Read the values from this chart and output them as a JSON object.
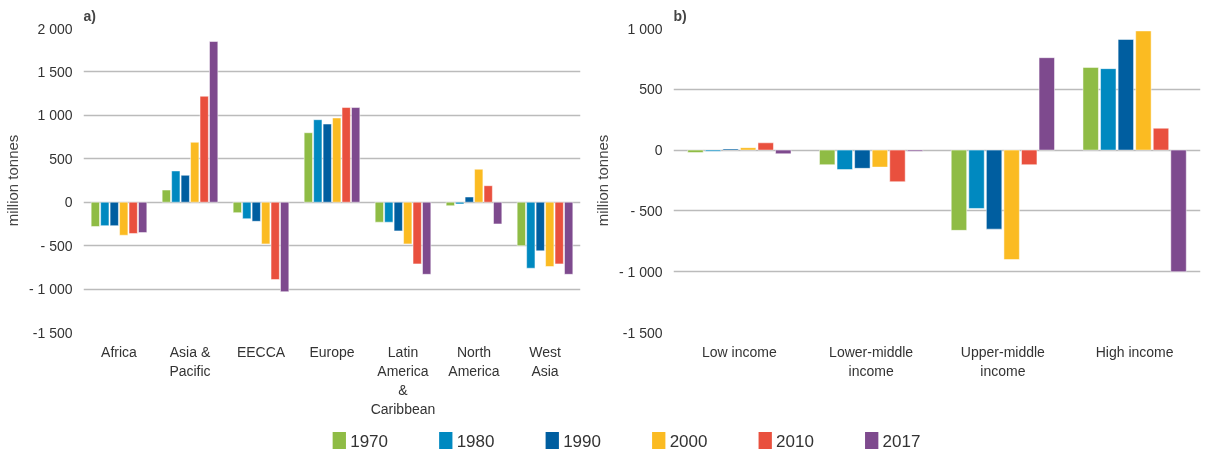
{
  "chart_data": [
    {
      "type": "bar",
      "title": "a)",
      "ylabel": "million tonnes",
      "categories": [
        "Africa",
        "Asia &\nPacific",
        "EECCA",
        "Europe",
        "Latin\nAmerica\n&\nCaribbean",
        "North\nAmerica",
        "West\nAsia"
      ],
      "series": [
        {
          "name": "1970",
          "color": "#8fbc45",
          "values": [
            -280,
            140,
            -120,
            800,
            -230,
            -40,
            -500
          ]
        },
        {
          "name": "1980",
          "color": "#0089c0",
          "values": [
            -270,
            360,
            -190,
            950,
            -230,
            -20,
            -760
          ]
        },
        {
          "name": "1990",
          "color": "#005ea0",
          "values": [
            -270,
            310,
            -220,
            900,
            -330,
            60,
            -560
          ]
        },
        {
          "name": "2000",
          "color": "#fbbb22",
          "values": [
            -380,
            690,
            -480,
            970,
            -480,
            380,
            -740
          ]
        },
        {
          "name": "2010",
          "color": "#e9503e",
          "values": [
            -360,
            1220,
            -890,
            1090,
            -710,
            190,
            -710
          ]
        },
        {
          "name": "2017",
          "color": "#7e4a8e",
          "values": [
            -350,
            1850,
            -1030,
            1090,
            -830,
            -250,
            -830
          ]
        }
      ],
      "ylim": [
        -1500,
        2000
      ],
      "yticks": [
        {
          "value": -1500,
          "label": "-1 500"
        },
        {
          "value": -1000,
          "label": "- 1 000"
        },
        {
          "value": -500,
          "label": "- 500"
        },
        0,
        500,
        {
          "value": 1000,
          "label": "1 000"
        },
        {
          "value": 1500,
          "label": "1 500"
        },
        {
          "value": 2000,
          "label": "2 000"
        }
      ],
      "grid": "y",
      "legend": "bottom"
    },
    {
      "type": "bar",
      "title": "b)",
      "ylabel": "million tonnes",
      "categories": [
        "Low income",
        "Lower-middle\nincome",
        "Upper-middle\nincome",
        "High income"
      ],
      "series": [
        {
          "color": "#8fbc45",
          "values": [
            -20,
            -120,
            -660,
            680
          ]
        },
        {
          "color": "#0089c0",
          "values": [
            -10,
            -160,
            -480,
            670
          ]
        },
        {
          "color": "#005ea0",
          "values": [
            10,
            -150,
            -650,
            910
          ]
        },
        {
          "color": "#fbbb22",
          "values": [
            20,
            -140,
            -900,
            980
          ]
        },
        {
          "color": "#e9503e",
          "values": [
            60,
            -260,
            -120,
            180
          ]
        },
        {
          "color": "#7e4a8e",
          "values": [
            -30,
            -10,
            760,
            -1000
          ]
        }
      ],
      "ylim": [
        -1500,
        1000
      ],
      "yticks": [
        {
          "value": -1500,
          "label": "-1 500"
        },
        {
          "value": -1000,
          "label": "- 1 000"
        },
        {
          "value": -500,
          "label": "- 500"
        },
        0,
        500,
        {
          "value": 1000,
          "label": "1 000"
        }
      ],
      "grid": "y"
    }
  ]
}
